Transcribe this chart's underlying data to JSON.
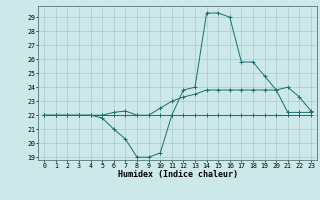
{
  "title": "",
  "xlabel": "Humidex (Indice chaleur)",
  "ylabel": "",
  "background_color": "#cce8e8",
  "grid_color": "#aacccc",
  "line_color": "#1a6e6e",
  "hours": [
    0,
    1,
    2,
    3,
    4,
    5,
    6,
    7,
    8,
    9,
    10,
    11,
    12,
    13,
    14,
    15,
    16,
    17,
    18,
    19,
    20,
    21,
    22,
    23
  ],
  "line1": [
    22,
    22,
    22,
    22,
    22,
    22,
    22,
    22,
    22,
    22,
    22,
    22,
    22,
    22,
    22,
    22,
    22,
    22,
    22,
    22,
    22,
    22,
    22,
    22
  ],
  "line3": [
    22,
    22,
    22,
    22,
    22,
    21.8,
    21,
    20.3,
    19,
    19,
    19.3,
    22,
    23.8,
    24,
    29.3,
    29.3,
    29,
    25.8,
    25.8,
    24.8,
    23.8,
    24,
    23.3,
    22.3
  ],
  "line4": [
    22,
    22,
    22,
    22,
    22,
    22,
    22.2,
    22.3,
    22,
    22,
    22.5,
    23,
    23.3,
    23.5,
    23.8,
    23.8,
    23.8,
    23.8,
    23.8,
    23.8,
    23.8,
    22.2,
    22.2,
    22.2
  ],
  "ylim": [
    18.8,
    29.8
  ],
  "yticks": [
    19,
    20,
    21,
    22,
    23,
    24,
    25,
    26,
    27,
    28,
    29
  ],
  "xlim": [
    -0.5,
    23.5
  ],
  "xtick_fontsize": 4.8,
  "ytick_fontsize": 4.8,
  "xlabel_fontsize": 6.0
}
